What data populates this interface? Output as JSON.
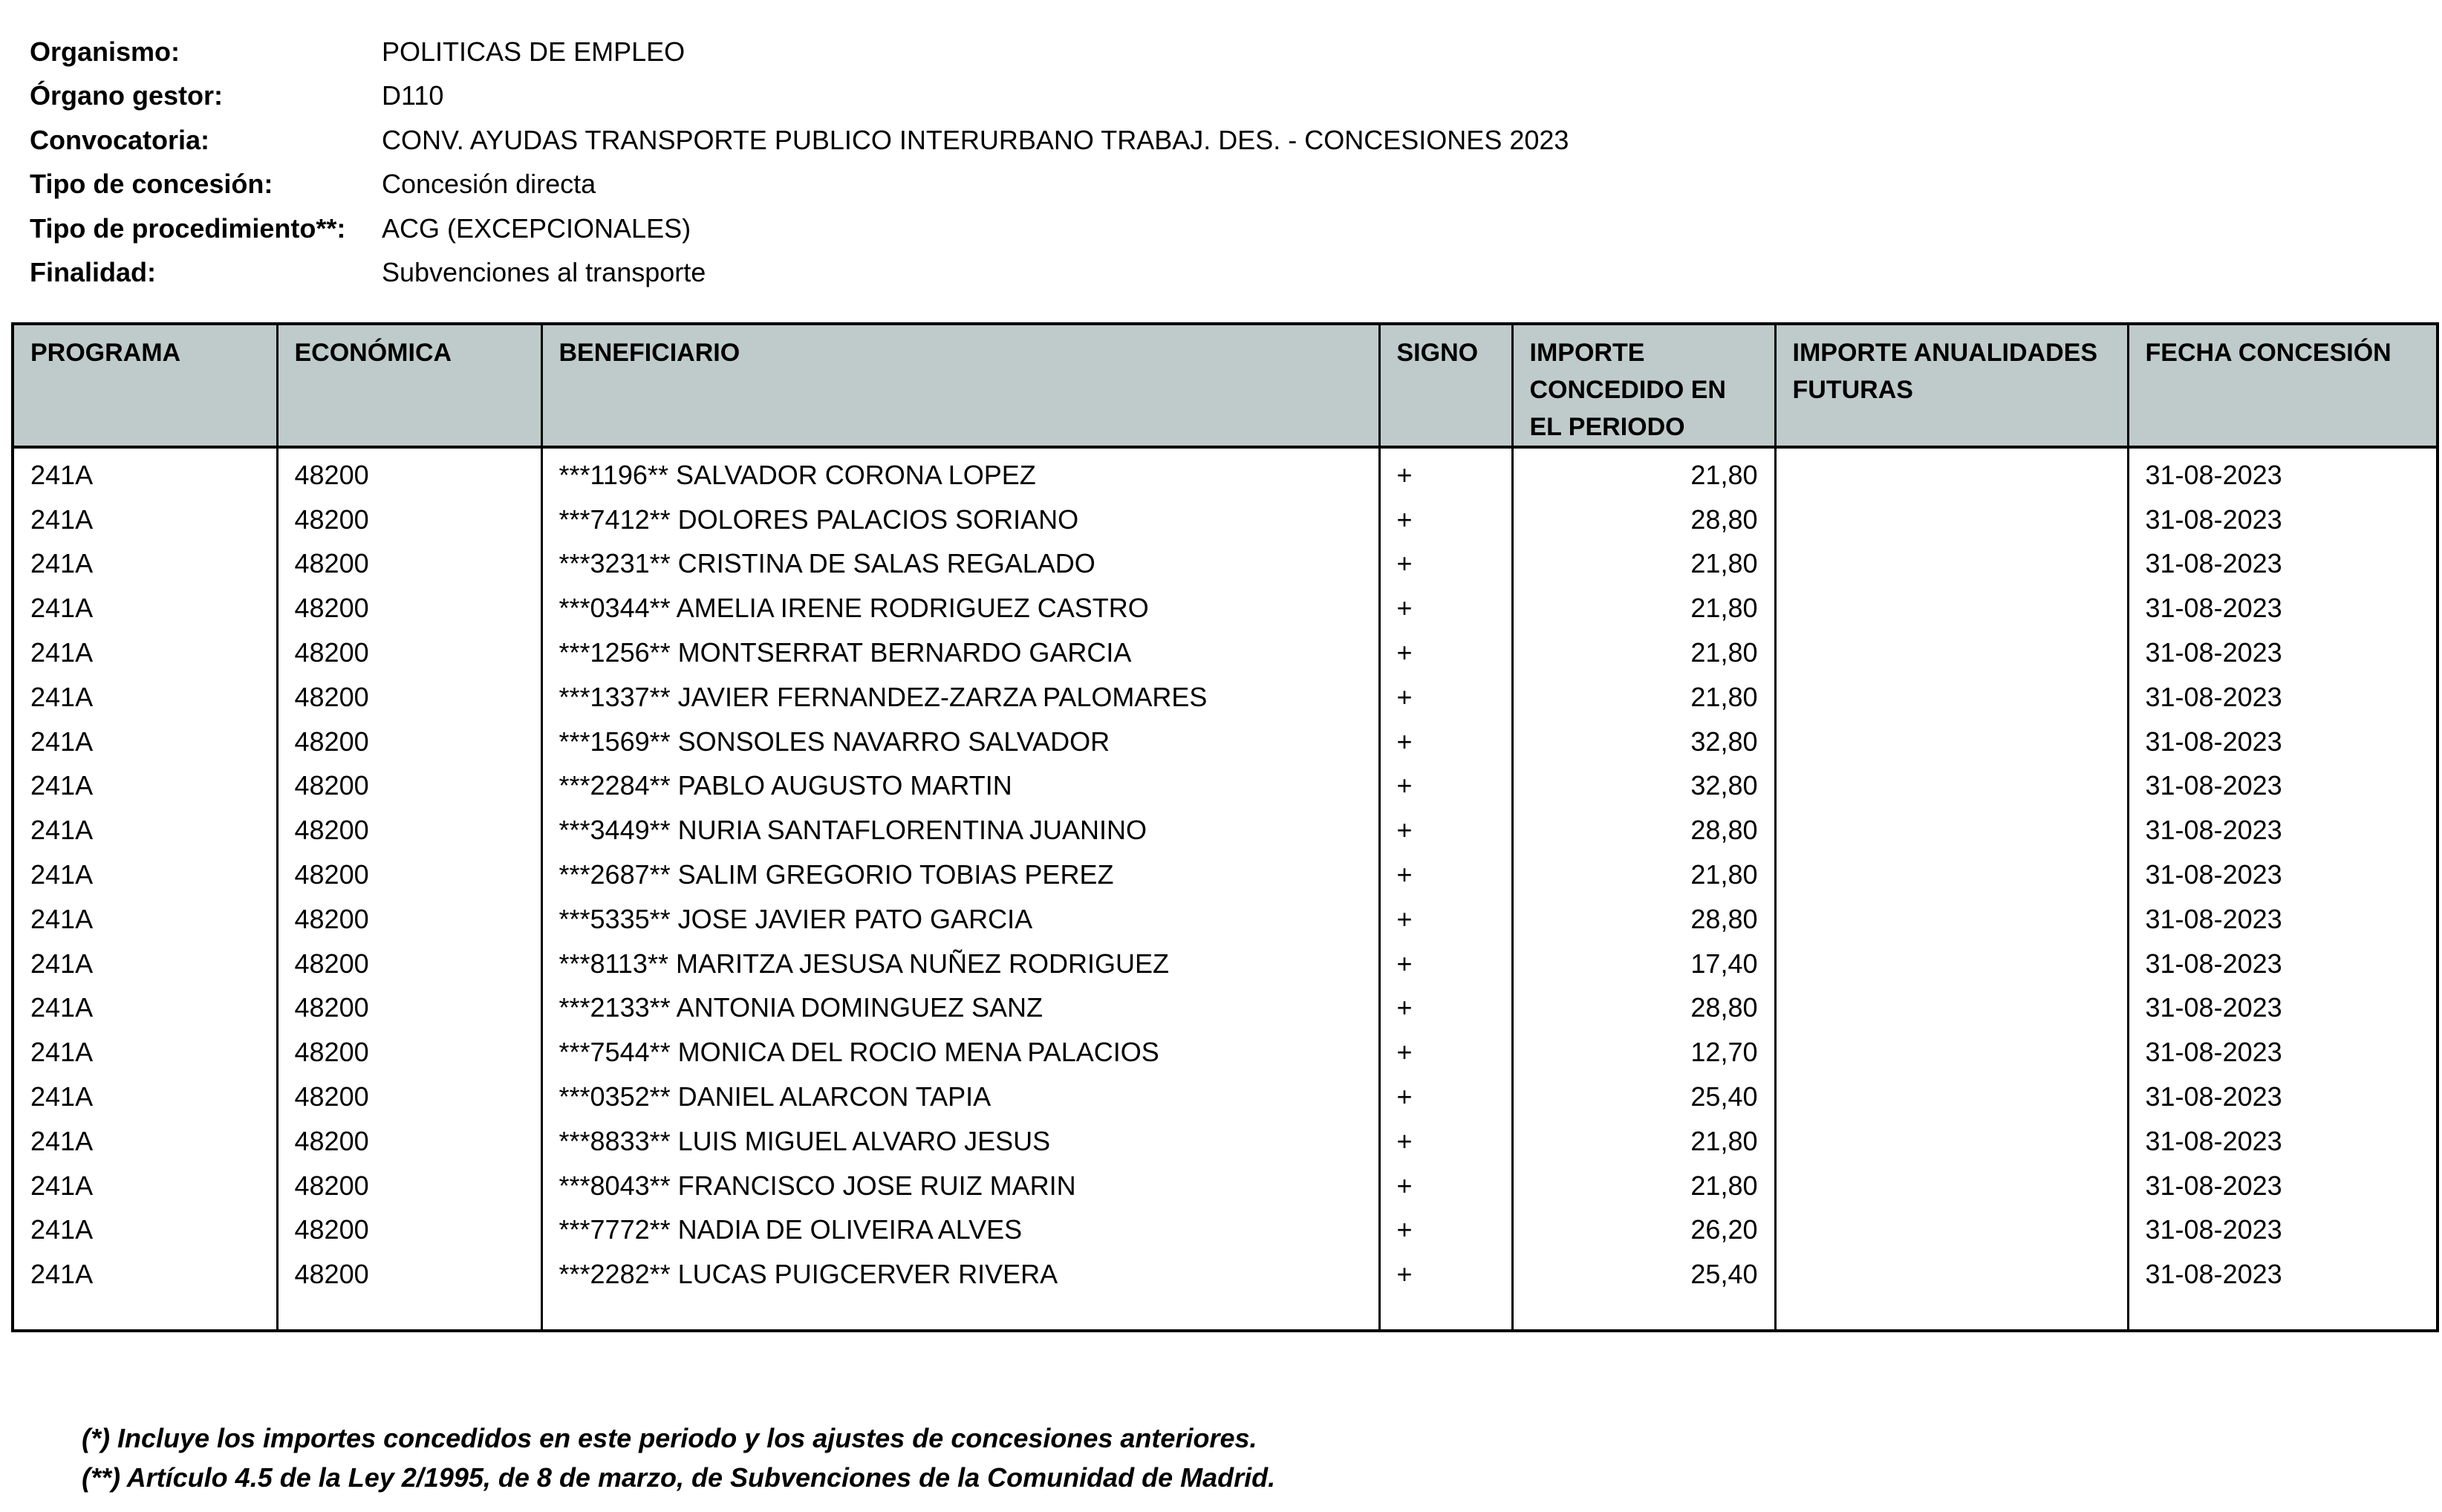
{
  "meta": [
    {
      "label": "Organismo:",
      "value": "POLITICAS DE EMPLEO"
    },
    {
      "label": "Órgano gestor:",
      "value": "D110"
    },
    {
      "label": "Convocatoria:",
      "value": "CONV. AYUDAS TRANSPORTE PUBLICO INTERURBANO TRABAJ. DES. - CONCESIONES 2023"
    },
    {
      "label": "Tipo de concesión:",
      "value": "Concesión directa"
    },
    {
      "label": "Tipo de procedimiento**:",
      "value": "ACG (EXCEPCIONALES)"
    },
    {
      "label": "Finalidad:",
      "value": "Subvenciones al transporte"
    }
  ],
  "table": {
    "header_bg": "#bfcbca",
    "columns": [
      "PROGRAMA",
      "ECONÓMICA",
      "BENEFICIARIO",
      "SIGNO",
      "IMPORTE CONCEDIDO EN EL PERIODO",
      "IMPORTE ANUALIDADES FUTURAS",
      "FECHA CONCESIÓN"
    ],
    "rows": [
      [
        "241A",
        "48200",
        "***1196** SALVADOR CORONA LOPEZ",
        "+",
        "21,80",
        "",
        "31-08-2023"
      ],
      [
        "241A",
        "48200",
        "***7412** DOLORES PALACIOS SORIANO",
        "+",
        "28,80",
        "",
        "31-08-2023"
      ],
      [
        "241A",
        "48200",
        "***3231** CRISTINA DE SALAS REGALADO",
        "+",
        "21,80",
        "",
        "31-08-2023"
      ],
      [
        "241A",
        "48200",
        "***0344** AMELIA IRENE RODRIGUEZ CASTRO",
        "+",
        "21,80",
        "",
        "31-08-2023"
      ],
      [
        "241A",
        "48200",
        "***1256** MONTSERRAT BERNARDO GARCIA",
        "+",
        "21,80",
        "",
        "31-08-2023"
      ],
      [
        "241A",
        "48200",
        "***1337** JAVIER FERNANDEZ-ZARZA PALOMARES",
        "+",
        "21,80",
        "",
        "31-08-2023"
      ],
      [
        "241A",
        "48200",
        "***1569** SONSOLES NAVARRO SALVADOR",
        "+",
        "32,80",
        "",
        "31-08-2023"
      ],
      [
        "241A",
        "48200",
        "***2284** PABLO AUGUSTO MARTIN",
        "+",
        "32,80",
        "",
        "31-08-2023"
      ],
      [
        "241A",
        "48200",
        "***3449** NURIA SANTAFLORENTINA JUANINO",
        "+",
        "28,80",
        "",
        "31-08-2023"
      ],
      [
        "241A",
        "48200",
        "***2687** SALIM GREGORIO TOBIAS PEREZ",
        "+",
        "21,80",
        "",
        "31-08-2023"
      ],
      [
        "241A",
        "48200",
        "***5335** JOSE JAVIER PATO GARCIA",
        "+",
        "28,80",
        "",
        "31-08-2023"
      ],
      [
        "241A",
        "48200",
        "***8113** MARITZA JESUSA NUÑEZ RODRIGUEZ",
        "+",
        "17,40",
        "",
        "31-08-2023"
      ],
      [
        "241A",
        "48200",
        "***2133** ANTONIA DOMINGUEZ SANZ",
        "+",
        "28,80",
        "",
        "31-08-2023"
      ],
      [
        "241A",
        "48200",
        "***7544** MONICA DEL ROCIO MENA PALACIOS",
        "+",
        "12,70",
        "",
        "31-08-2023"
      ],
      [
        "241A",
        "48200",
        "***0352** DANIEL ALARCON TAPIA",
        "+",
        "25,40",
        "",
        "31-08-2023"
      ],
      [
        "241A",
        "48200",
        "***8833** LUIS MIGUEL ALVARO JESUS",
        "+",
        "21,80",
        "",
        "31-08-2023"
      ],
      [
        "241A",
        "48200",
        "***8043** FRANCISCO JOSE RUIZ MARIN",
        "+",
        "21,80",
        "",
        "31-08-2023"
      ],
      [
        "241A",
        "48200",
        "***7772** NADIA DE OLIVEIRA ALVES",
        "+",
        "26,20",
        "",
        "31-08-2023"
      ],
      [
        "241A",
        "48200",
        "***2282** LUCAS PUIGCERVER RIVERA",
        "+",
        "25,40",
        "",
        "31-08-2023"
      ]
    ]
  },
  "footnotes": [
    "(*) Incluye los importes concedidos en este periodo y los ajustes de concesiones anteriores.",
    "(**) Artículo 4.5 de la Ley 2/1995, de 8 de marzo, de Subvenciones de la Comunidad de Madrid."
  ]
}
